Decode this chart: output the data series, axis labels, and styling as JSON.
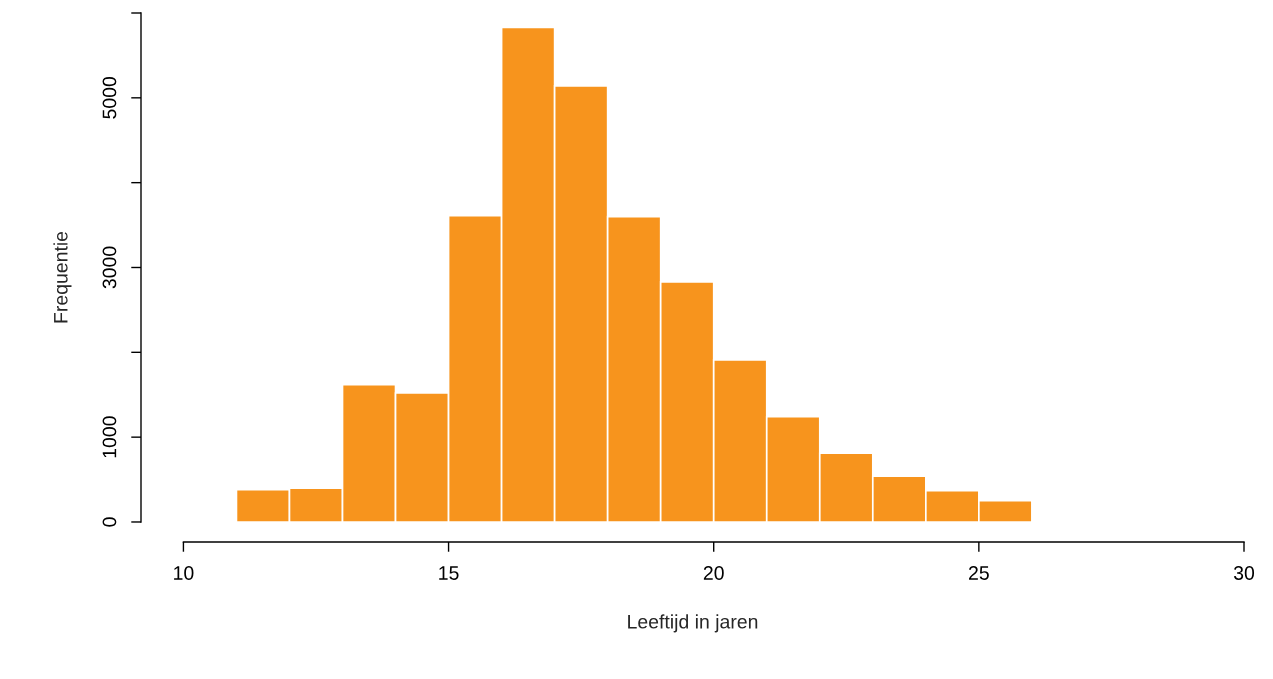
{
  "chart_data": {
    "type": "histogram",
    "xlabel": "Leeftijd in jaren",
    "ylabel": "Frequentie",
    "bins": [
      11,
      12,
      13,
      14,
      15,
      16,
      17,
      18,
      19,
      20,
      21,
      22,
      23,
      24,
      25,
      26
    ],
    "values": [
      380,
      400,
      1620,
      1520,
      3610,
      5830,
      5140,
      3600,
      2830,
      1910,
      1240,
      810,
      540,
      370,
      250
    ],
    "color": "#f7941d",
    "xlim": [
      9.2,
      30
    ],
    "xticks": [
      10,
      15,
      20,
      25,
      30
    ],
    "ylim": [
      -236,
      6000
    ],
    "yticks": [
      0,
      1000,
      {
        "value": 2000,
        "label": null
      },
      3000,
      {
        "value": 4000,
        "label": null
      },
      5000,
      {
        "value": 6000,
        "label": null
      }
    ],
    "grid": false,
    "legend": false
  }
}
